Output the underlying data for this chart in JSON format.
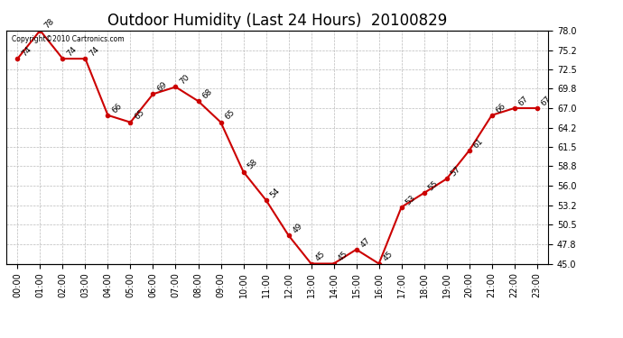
{
  "title": "Outdoor Humidity (Last 24 Hours)  20100829",
  "copyright_text": "Copyright©2010 Cartronics.com",
  "x_labels": [
    "00:00",
    "01:00",
    "02:00",
    "03:00",
    "04:00",
    "05:00",
    "06:00",
    "07:00",
    "08:00",
    "09:00",
    "10:00",
    "11:00",
    "12:00",
    "13:00",
    "14:00",
    "15:00",
    "16:00",
    "17:00",
    "18:00",
    "19:00",
    "20:00",
    "21:00",
    "22:00",
    "23:00"
  ],
  "y_values": [
    74,
    78,
    74,
    74,
    66,
    65,
    69,
    70,
    68,
    65,
    58,
    54,
    49,
    45,
    45,
    47,
    45,
    53,
    55,
    57,
    61,
    66,
    67,
    67
  ],
  "ylim_min": 45.0,
  "ylim_max": 78.0,
  "y_right_ticks": [
    45.0,
    47.8,
    50.5,
    53.2,
    56.0,
    58.8,
    61.5,
    64.2,
    67.0,
    69.8,
    72.5,
    75.2,
    78.0
  ],
  "line_color": "#cc0000",
  "marker_color": "#cc0000",
  "bg_color": "#ffffff",
  "grid_color": "#bbbbbb",
  "title_fontsize": 12,
  "label_fontsize": 7,
  "annotation_fontsize": 6.5
}
